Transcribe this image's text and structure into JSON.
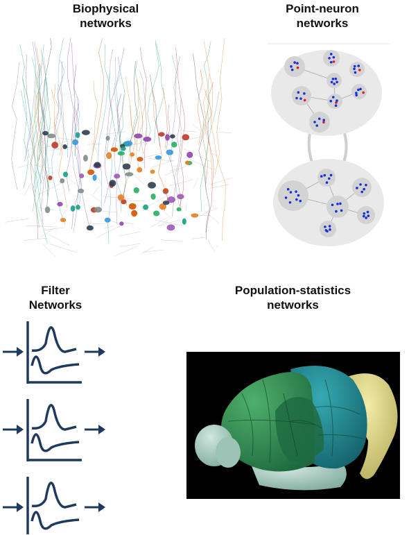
{
  "panels": {
    "biophysical": {
      "title": "Biophysical\nnetworks"
    },
    "point_neuron": {
      "title": "Point-neuron\nnetworks"
    },
    "filter": {
      "title": "Filter\nNetworks"
    },
    "population": {
      "title": "Population-statistics\nnetworks"
    }
  },
  "colors": {
    "filter_stroke": "#1f3a5f",
    "point_blue": "#1a2ee0",
    "point_red": "#e0192a",
    "cluster_bg": "#e9e9e9",
    "brain_bg": "#000000",
    "brain_green": "#2f8f57",
    "brain_teal": "#1d8f97",
    "brain_yellow": "#e3dc8a",
    "brain_pale": "#a9cfc4"
  },
  "icons": [
    "arrow-right-icon",
    "filter-kernel-icon"
  ]
}
